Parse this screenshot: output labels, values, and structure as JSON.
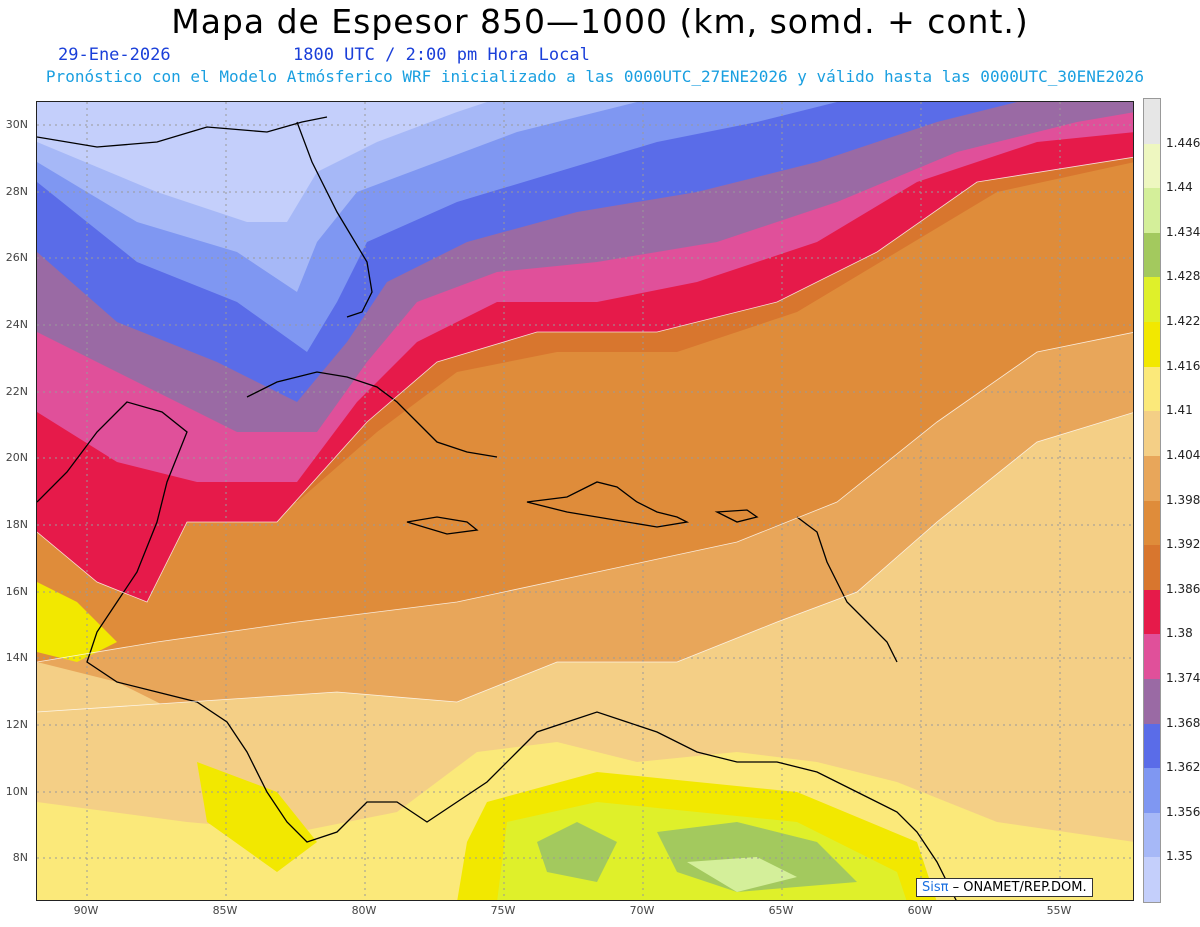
{
  "title": "Mapa de Espesor 850—1000 (km, somd. + cont.)",
  "date": "29-Ene-2026",
  "time": "1800 UTC / 2:00 pm Hora Local",
  "subtitle": "Pronóstico con el Modelo Atmósferico WRF inicializado a las 0000UTC_27ENE2026 y válido hasta las  0000UTC_30ENE2026",
  "credit": {
    "brand": "Sisπ",
    "text": " – ONAMET/REP.DOM."
  },
  "lat_labels": [
    "30N",
    "28N",
    "26N",
    "24N",
    "22N",
    "20N",
    "18N",
    "16N",
    "14N",
    "12N",
    "10N",
    "8N"
  ],
  "lon_labels": [
    "90W",
    "85W",
    "80W",
    "75W",
    "70W",
    "65W",
    "60W",
    "55W"
  ],
  "colorbar": {
    "labels": [
      "1.446",
      "1.44",
      "1.434",
      "1.428",
      "1.422",
      "1.416",
      "1.41",
      "1.404",
      "1.398",
      "1.392",
      "1.386",
      "1.38",
      "1.374",
      "1.368",
      "1.362",
      "1.356",
      "1.35"
    ],
    "colors": [
      "#e6e6e6",
      "#eef7c0",
      "#d4ef9a",
      "#a3c95e",
      "#dff02a",
      "#f2e800",
      "#fbe97a",
      "#f4cf86",
      "#e8a65a",
      "#df8c3a",
      "#d8762e",
      "#e61a4a",
      "#e0509a",
      "#9a6aa4",
      "#5a6ce8",
      "#7f97f2",
      "#a6b8f7",
      "#c4cffb"
    ]
  }
}
